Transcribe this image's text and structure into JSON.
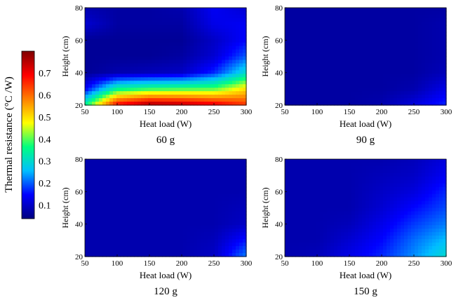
{
  "figure": {
    "colorbar": {
      "label": "Thermal resistance (°C /W)",
      "ticks": [
        "0.1",
        "0.2",
        "0.3",
        "0.4",
        "0.5",
        "0.6",
        "0.7"
      ],
      "tick_values": [
        0.1,
        0.2,
        0.3,
        0.4,
        0.5,
        0.6,
        0.7
      ],
      "range": [
        0.04,
        0.8
      ],
      "colormap": [
        "#00007f",
        "#0000ff",
        "#00bfff",
        "#00ff80",
        "#ffff00",
        "#ff8000",
        "#ff0000",
        "#7f0000"
      ]
    }
  },
  "chart_data": [
    {
      "type": "heatmap",
      "title": "60 g",
      "xlabel": "Heat load (W)",
      "ylabel": "Height (cm)",
      "xlim": [
        50,
        300
      ],
      "ylim": [
        20,
        80
      ],
      "x_ticks": [
        "50",
        "100",
        "150",
        "200",
        "250",
        "300"
      ],
      "y_ticks": [
        "20",
        "40",
        "60",
        "80"
      ],
      "x": [
        50,
        100,
        150,
        200,
        250,
        300
      ],
      "y": [
        20,
        30,
        40,
        50,
        60,
        70,
        80
      ],
      "z": [
        [
          0.35,
          0.7,
          0.78,
          0.76,
          0.72,
          0.65
        ],
        [
          0.14,
          0.35,
          0.38,
          0.39,
          0.4,
          0.5
        ],
        [
          0.06,
          0.08,
          0.09,
          0.1,
          0.17,
          0.3
        ],
        [
          0.06,
          0.06,
          0.06,
          0.07,
          0.11,
          0.2
        ],
        [
          0.06,
          0.06,
          0.06,
          0.06,
          0.1,
          0.15
        ],
        [
          0.11,
          0.07,
          0.07,
          0.07,
          0.13,
          0.14
        ],
        [
          0.08,
          0.07,
          0.07,
          0.08,
          0.14,
          0.11
        ]
      ]
    },
    {
      "type": "heatmap",
      "title": "90 g",
      "xlabel": "Heat load (W)",
      "ylabel": "Height (cm)",
      "xlim": [
        50,
        300
      ],
      "ylim": [
        20,
        80
      ],
      "x_ticks": [
        "50",
        "100",
        "150",
        "200",
        "250",
        "300"
      ],
      "y_ticks": [
        "20",
        "40",
        "60",
        "80"
      ],
      "x": [
        50,
        100,
        150,
        200,
        250,
        300
      ],
      "y": [
        20,
        30,
        40,
        50,
        60,
        70,
        80
      ],
      "z": [
        [
          0.07,
          0.07,
          0.07,
          0.08,
          0.12,
          0.17
        ],
        [
          0.07,
          0.07,
          0.07,
          0.07,
          0.08,
          0.13
        ],
        [
          0.07,
          0.07,
          0.07,
          0.07,
          0.07,
          0.09
        ],
        [
          0.07,
          0.07,
          0.07,
          0.07,
          0.07,
          0.08
        ],
        [
          0.07,
          0.07,
          0.07,
          0.07,
          0.07,
          0.08
        ],
        [
          0.07,
          0.07,
          0.07,
          0.07,
          0.07,
          0.08
        ],
        [
          0.07,
          0.07,
          0.07,
          0.07,
          0.07,
          0.07
        ]
      ]
    },
    {
      "type": "heatmap",
      "title": "120 g",
      "xlabel": "Heat load (W)",
      "ylabel": "Height (cm)",
      "xlim": [
        50,
        300
      ],
      "ylim": [
        20,
        80
      ],
      "x_ticks": [
        "50",
        "100",
        "150",
        "200",
        "250",
        "300"
      ],
      "y_ticks": [
        "20",
        "40",
        "60",
        "80"
      ],
      "x": [
        50,
        100,
        150,
        200,
        250,
        300
      ],
      "y": [
        20,
        30,
        40,
        50,
        60,
        70,
        80
      ],
      "z": [
        [
          0.08,
          0.08,
          0.08,
          0.08,
          0.1,
          0.22
        ],
        [
          0.08,
          0.08,
          0.08,
          0.08,
          0.09,
          0.16
        ],
        [
          0.08,
          0.08,
          0.08,
          0.08,
          0.08,
          0.1
        ],
        [
          0.08,
          0.08,
          0.08,
          0.08,
          0.08,
          0.09
        ],
        [
          0.08,
          0.08,
          0.08,
          0.08,
          0.08,
          0.08
        ],
        [
          0.08,
          0.08,
          0.08,
          0.08,
          0.08,
          0.08
        ],
        [
          0.08,
          0.08,
          0.08,
          0.08,
          0.08,
          0.08
        ]
      ]
    },
    {
      "type": "heatmap",
      "title": "150 g",
      "xlabel": "Heat load (W)",
      "ylabel": "Height (cm)",
      "xlim": [
        50,
        300
      ],
      "ylim": [
        20,
        80
      ],
      "x_ticks": [
        "50",
        "100",
        "150",
        "200",
        "250",
        "300"
      ],
      "y_ticks": [
        "20",
        "40",
        "60",
        "80"
      ],
      "x": [
        50,
        100,
        150,
        200,
        250,
        300
      ],
      "y": [
        20,
        30,
        40,
        50,
        60,
        70,
        80
      ],
      "z": [
        [
          0.08,
          0.09,
          0.13,
          0.17,
          0.23,
          0.3
        ],
        [
          0.08,
          0.08,
          0.11,
          0.15,
          0.21,
          0.26
        ],
        [
          0.08,
          0.08,
          0.09,
          0.13,
          0.18,
          0.22
        ],
        [
          0.08,
          0.08,
          0.08,
          0.11,
          0.15,
          0.19
        ],
        [
          0.08,
          0.08,
          0.08,
          0.1,
          0.12,
          0.17
        ],
        [
          0.08,
          0.08,
          0.08,
          0.09,
          0.1,
          0.14
        ],
        [
          0.08,
          0.08,
          0.08,
          0.08,
          0.09,
          0.12
        ]
      ]
    }
  ]
}
